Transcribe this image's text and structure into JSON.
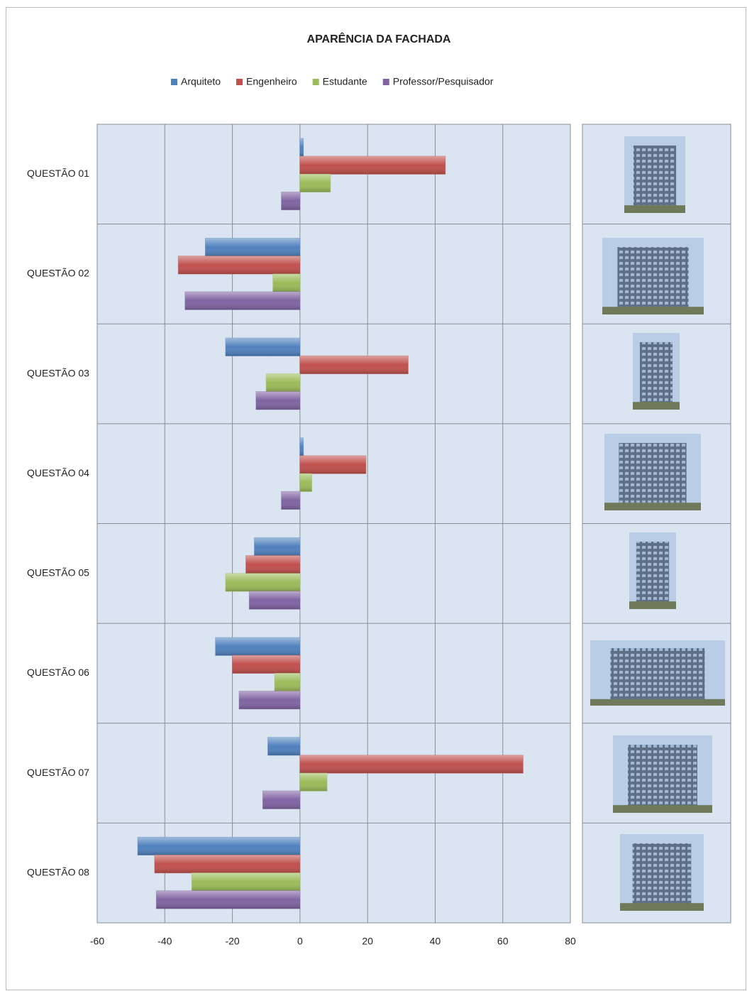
{
  "chart_data": {
    "type": "bar",
    "orientation": "horizontal",
    "title": "APARÊNCIA DA FACHADA",
    "categories": [
      "QUESTÃO 01",
      "QUESTÃO 02",
      "QUESTÃO 03",
      "QUESTÃO 04",
      "QUESTÃO 05",
      "QUESTÃO 06",
      "QUESTÃO 07",
      "QUESTÃO 08"
    ],
    "series": [
      {
        "name": "Arquiteto",
        "color": "#4f81bd",
        "values": [
          1,
          -28,
          -22,
          1,
          -13.5,
          -25,
          -9.5,
          -48
        ]
      },
      {
        "name": "Engenheiro",
        "color": "#c0504d",
        "values": [
          43,
          -36,
          32,
          19.5,
          -16,
          -20,
          66,
          -43
        ]
      },
      {
        "name": "Estudante",
        "color": "#9bbb59",
        "values": [
          9,
          -8,
          -10,
          3.5,
          -22,
          -7.5,
          8,
          -32
        ]
      },
      {
        "name": "Professor/Pesquisador",
        "color": "#8064a2",
        "values": [
          -5.5,
          -34,
          -13,
          -5.5,
          -15,
          -18,
          -11,
          -42.5
        ]
      }
    ],
    "xlim": [
      -60,
      80
    ],
    "xticks": [
      -60,
      -40,
      -20,
      0,
      20,
      40,
      60,
      80
    ],
    "grid": true,
    "legend": "top"
  }
}
